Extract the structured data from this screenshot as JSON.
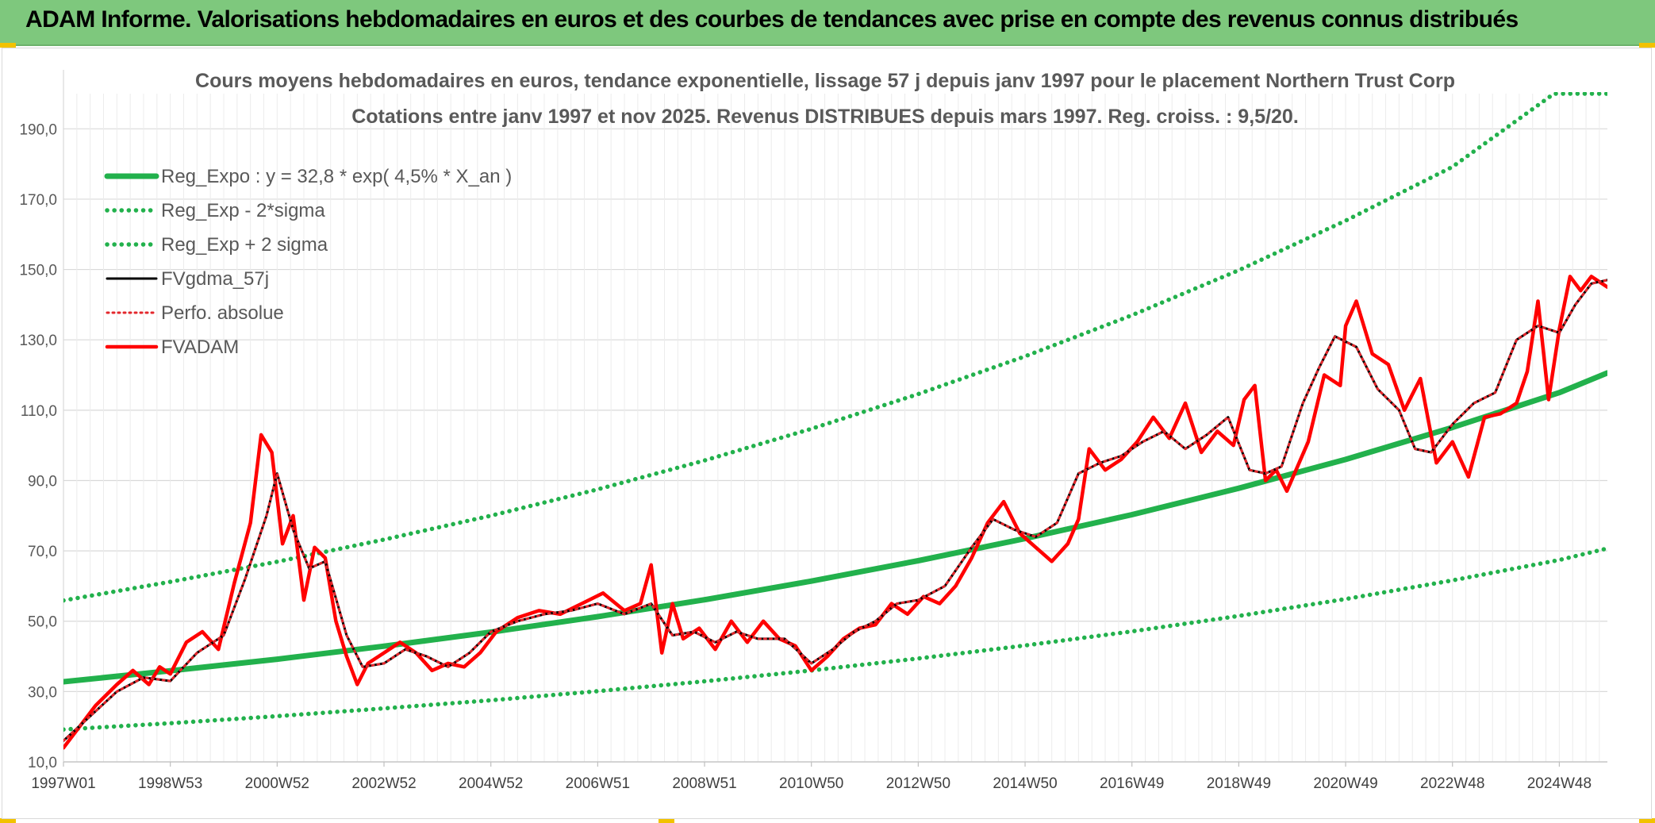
{
  "banner": {
    "title": "ADAM Informe. Valorisations hebdomadaires en euros et des courbes de tendances avec prise en compte des revenus connus distribués"
  },
  "chart_data": {
    "type": "line",
    "title": "Cours moyens hebdomadaires en euros, tendance exponentielle, lissage 57 j depuis janv 1997 pour le placement Northern Trust Corp",
    "subtitle": "Cotations entre janv 1997 et nov 2025. Revenus DISTRIBUES depuis mars 1997. Reg. croiss. : 9,5/20.",
    "xlabel": "",
    "ylabel": "",
    "xlim": [
      1997.0,
      2025.9
    ],
    "ylim": [
      10,
      200
    ],
    "grid": true,
    "legend_position": "top-left",
    "x_ticks": [
      {
        "x": 1997.0,
        "label": "1997W01"
      },
      {
        "x": 1999.0,
        "label": "1998W53"
      },
      {
        "x": 2001.0,
        "label": "2000W52"
      },
      {
        "x": 2003.0,
        "label": "2002W52"
      },
      {
        "x": 2005.0,
        "label": "2004W52"
      },
      {
        "x": 2007.0,
        "label": "2006W51"
      },
      {
        "x": 2009.0,
        "label": "2008W51"
      },
      {
        "x": 2011.0,
        "label": "2010W50"
      },
      {
        "x": 2013.0,
        "label": "2012W50"
      },
      {
        "x": 2015.0,
        "label": "2014W50"
      },
      {
        "x": 2017.0,
        "label": "2016W49"
      },
      {
        "x": 2019.0,
        "label": "2018W49"
      },
      {
        "x": 2021.0,
        "label": "2020W49"
      },
      {
        "x": 2023.0,
        "label": "2022W48"
      },
      {
        "x": 2025.0,
        "label": "2024W48"
      }
    ],
    "y_ticks": [
      {
        "y": 10,
        "label": "10,0"
      },
      {
        "y": 30,
        "label": "30,0"
      },
      {
        "y": 50,
        "label": "50,0"
      },
      {
        "y": 70,
        "label": "70,0"
      },
      {
        "y": 90,
        "label": "90,0"
      },
      {
        "y": 110,
        "label": "110,0"
      },
      {
        "y": 130,
        "label": "130,0"
      },
      {
        "y": 150,
        "label": "150,0"
      },
      {
        "y": 170,
        "label": "170,0"
      },
      {
        "y": 190,
        "label": "190,0"
      }
    ],
    "series": [
      {
        "name": "Reg_Expo : y = 32,8 * exp( 4,5% *  X_an )",
        "style": "solid-thick",
        "color": "#22b14c",
        "x": [
          1997.0,
          1999.0,
          2001.0,
          2003.0,
          2005.0,
          2007.0,
          2009.0,
          2011.0,
          2013.0,
          2015.0,
          2017.0,
          2019.0,
          2021.0,
          2023.0,
          2025.0,
          2025.9
        ],
        "values": [
          32.8,
          35.9,
          39.2,
          42.9,
          46.9,
          51.3,
          56.1,
          61.4,
          67.2,
          73.5,
          80.3,
          87.8,
          96.0,
          105.1,
          115.0,
          120.6
        ]
      },
      {
        "name": "Reg_Exp - 2*sigma",
        "style": "dotted",
        "color": "#22b14c",
        "x": [
          1997.0,
          1999.0,
          2001.0,
          2003.0,
          2005.0,
          2007.0,
          2009.0,
          2011.0,
          2013.0,
          2015.0,
          2017.0,
          2019.0,
          2021.0,
          2023.0,
          2025.0,
          2025.9
        ],
        "values": [
          19.2,
          21.0,
          23.0,
          25.2,
          27.5,
          30.1,
          32.9,
          36.0,
          39.4,
          43.1,
          47.1,
          51.5,
          56.3,
          61.6,
          67.4,
          70.7
        ]
      },
      {
        "name": "Reg_Exp + 2 sigma",
        "style": "dotted",
        "color": "#22b14c",
        "x": [
          1997.0,
          1999.0,
          2001.0,
          2003.0,
          2005.0,
          2007.0,
          2009.0,
          2011.0,
          2013.0,
          2015.0,
          2017.0,
          2019.0,
          2021.0,
          2023.0,
          2024.9,
          2025.9
        ],
        "values": [
          55.9,
          61.2,
          66.9,
          73.2,
          80.0,
          87.5,
          95.7,
          104.7,
          114.6,
          125.3,
          137.0,
          149.8,
          163.9,
          179.2,
          200.0,
          200.0
        ]
      },
      {
        "name": "FVgdma_57j",
        "style": "solid",
        "color": "#000000",
        "x": [
          1997.0,
          1997.5,
          1998.0,
          1998.5,
          1999.0,
          1999.5,
          2000.0,
          2000.4,
          2000.8,
          2001.0,
          2001.3,
          2001.6,
          2001.9,
          2002.3,
          2002.6,
          2003.0,
          2003.4,
          2003.8,
          2004.2,
          2004.6,
          2005.0,
          2005.5,
          2006.0,
          2006.5,
          2007.0,
          2007.5,
          2008.0,
          2008.4,
          2008.8,
          2009.2,
          2009.6,
          2010.0,
          2010.5,
          2011.0,
          2011.4,
          2011.8,
          2012.2,
          2012.6,
          2013.0,
          2013.5,
          2014.0,
          2014.4,
          2014.8,
          2015.2,
          2015.6,
          2016.0,
          2016.4,
          2016.8,
          2017.2,
          2017.6,
          2018.0,
          2018.4,
          2018.8,
          2019.2,
          2019.5,
          2019.8,
          2020.2,
          2020.5,
          2020.8,
          2021.2,
          2021.6,
          2022.0,
          2022.3,
          2022.6,
          2023.0,
          2023.4,
          2023.8,
          2024.2,
          2024.6,
          2025.0,
          2025.3,
          2025.6,
          2025.9
        ],
        "values": [
          16,
          23,
          30,
          34,
          33,
          41,
          46,
          62,
          80,
          92,
          76,
          65,
          67,
          46,
          37,
          38,
          42,
          40,
          37,
          41,
          47,
          50,
          52,
          53,
          55,
          52,
          55,
          46,
          47,
          44,
          47,
          45,
          45,
          38,
          42,
          47,
          50,
          55,
          56,
          60,
          71,
          79,
          76,
          74,
          78,
          92,
          95,
          97,
          101,
          104,
          99,
          103,
          108,
          93,
          92,
          94,
          112,
          122,
          131,
          128,
          116,
          110,
          99,
          98,
          106,
          112,
          115,
          130,
          134,
          132,
          140,
          146,
          147
        ]
      },
      {
        "name": "Perfo. absolue",
        "style": "dotted",
        "color": "#e3272c",
        "x": [
          1997.0,
          1997.5,
          1998.0,
          1998.5,
          1999.0,
          1999.5,
          2000.0,
          2000.4,
          2000.8,
          2001.0,
          2001.3,
          2001.6,
          2001.9,
          2002.3,
          2002.6,
          2003.0,
          2003.4,
          2003.8,
          2004.2,
          2004.6,
          2005.0,
          2005.5,
          2006.0,
          2006.5,
          2007.0,
          2007.5,
          2008.0,
          2008.4,
          2008.8,
          2009.2,
          2009.6,
          2010.0,
          2010.5,
          2011.0,
          2011.4,
          2011.8,
          2012.2,
          2012.6,
          2013.0,
          2013.5,
          2014.0,
          2014.4,
          2014.8,
          2015.2,
          2015.6,
          2016.0,
          2016.4,
          2016.8,
          2017.2,
          2017.6,
          2018.0,
          2018.4,
          2018.8,
          2019.2,
          2019.5,
          2019.8,
          2020.2,
          2020.5,
          2020.8,
          2021.2,
          2021.6,
          2022.0,
          2022.3,
          2022.6,
          2023.0,
          2023.4,
          2023.8,
          2024.2,
          2024.6,
          2025.0,
          2025.3,
          2025.6,
          2025.9
        ],
        "values": [
          16,
          23,
          30,
          34,
          33,
          41,
          46,
          62,
          80,
          92,
          76,
          65,
          67,
          46,
          37,
          38,
          42,
          40,
          37,
          41,
          47,
          50,
          52,
          53,
          55,
          52,
          55,
          46,
          47,
          44,
          47,
          45,
          45,
          38,
          42,
          47,
          50,
          55,
          56,
          60,
          71,
          79,
          76,
          74,
          78,
          92,
          95,
          97,
          101,
          104,
          99,
          103,
          108,
          93,
          92,
          94,
          112,
          122,
          131,
          128,
          116,
          110,
          99,
          98,
          106,
          112,
          115,
          130,
          134,
          132,
          140,
          146,
          147
        ]
      },
      {
        "name": "FVADAM",
        "style": "solid-thick",
        "color": "#ff0000",
        "x": [
          1997.0,
          1997.3,
          1997.6,
          1998.0,
          1998.3,
          1998.6,
          1998.8,
          1999.0,
          1999.3,
          1999.6,
          1999.9,
          2000.2,
          2000.5,
          2000.7,
          2000.9,
          2001.1,
          2001.3,
          2001.5,
          2001.7,
          2001.9,
          2002.1,
          2002.3,
          2002.5,
          2002.7,
          2003.0,
          2003.3,
          2003.6,
          2003.9,
          2004.2,
          2004.5,
          2004.8,
          2005.1,
          2005.5,
          2005.9,
          2006.3,
          2006.7,
          2007.1,
          2007.5,
          2007.8,
          2008.0,
          2008.2,
          2008.4,
          2008.6,
          2008.9,
          2009.2,
          2009.5,
          2009.8,
          2010.1,
          2010.4,
          2010.7,
          2011.0,
          2011.3,
          2011.6,
          2011.9,
          2012.2,
          2012.5,
          2012.8,
          2013.1,
          2013.4,
          2013.7,
          2014.0,
          2014.3,
          2014.6,
          2014.9,
          2015.2,
          2015.5,
          2015.8,
          2016.0,
          2016.2,
          2016.5,
          2016.8,
          2017.1,
          2017.4,
          2017.7,
          2018.0,
          2018.3,
          2018.6,
          2018.9,
          2019.1,
          2019.3,
          2019.5,
          2019.7,
          2019.9,
          2020.1,
          2020.3,
          2020.6,
          2020.9,
          2021.0,
          2021.2,
          2021.5,
          2021.8,
          2022.1,
          2022.4,
          2022.7,
          2023.0,
          2023.3,
          2023.6,
          2023.9,
          2024.2,
          2024.4,
          2024.6,
          2024.8,
          2025.0,
          2025.2,
          2025.4,
          2025.6,
          2025.9
        ],
        "values": [
          14,
          20,
          26,
          32,
          36,
          32,
          37,
          35,
          44,
          47,
          42,
          61,
          78,
          103,
          98,
          72,
          80,
          56,
          71,
          68,
          50,
          40,
          32,
          38,
          41,
          44,
          41,
          36,
          38,
          37,
          41,
          47,
          51,
          53,
          52,
          55,
          58,
          53,
          55,
          66,
          41,
          55,
          45,
          48,
          42,
          50,
          44,
          50,
          45,
          43,
          36,
          40,
          45,
          48,
          49,
          55,
          52,
          57,
          55,
          60,
          68,
          78,
          84,
          75,
          71,
          67,
          72,
          79,
          99,
          93,
          96,
          101,
          108,
          102,
          112,
          98,
          104,
          100,
          113,
          117,
          90,
          93,
          87,
          94,
          101,
          120,
          117,
          134,
          141,
          126,
          123,
          110,
          119,
          95,
          101,
          91,
          108,
          109,
          112,
          121,
          141,
          113,
          133,
          148,
          144,
          148,
          145
        ]
      }
    ]
  }
}
